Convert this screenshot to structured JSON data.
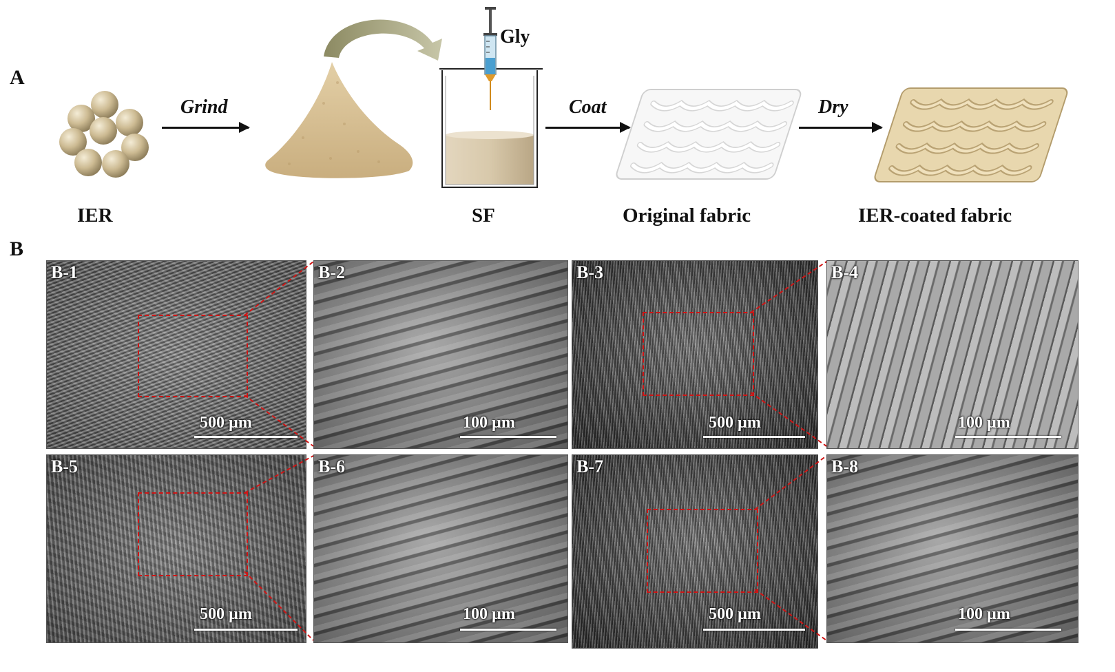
{
  "panel_a": {
    "letter": "A",
    "steps": {
      "grind": "Grind",
      "coat": "Coat",
      "dry": "Dry"
    },
    "syringe_label": "Gly",
    "captions": {
      "ier": "IER",
      "sf": "SF",
      "original": "Original fabric",
      "coated": "IER-coated fabric"
    }
  },
  "panel_b": {
    "letter": "B",
    "images": [
      {
        "label": "B-1",
        "scale": "500 µm"
      },
      {
        "label": "B-2",
        "scale": "100 µm"
      },
      {
        "label": "B-3",
        "scale": "500 µm"
      },
      {
        "label": "B-4",
        "scale": "100 µm"
      },
      {
        "label": "B-5",
        "scale": "500 µm"
      },
      {
        "label": "B-6",
        "scale": "100 µm"
      },
      {
        "label": "B-7",
        "scale": "500 µm"
      },
      {
        "label": "B-8",
        "scale": "100 µm"
      }
    ]
  },
  "colors": {
    "bead": "#cdbb93",
    "powder": "#d8c29a",
    "roi": "#d01414",
    "fabric_white": "#f2f2f2",
    "fabric_coated": "#d9c497"
  }
}
